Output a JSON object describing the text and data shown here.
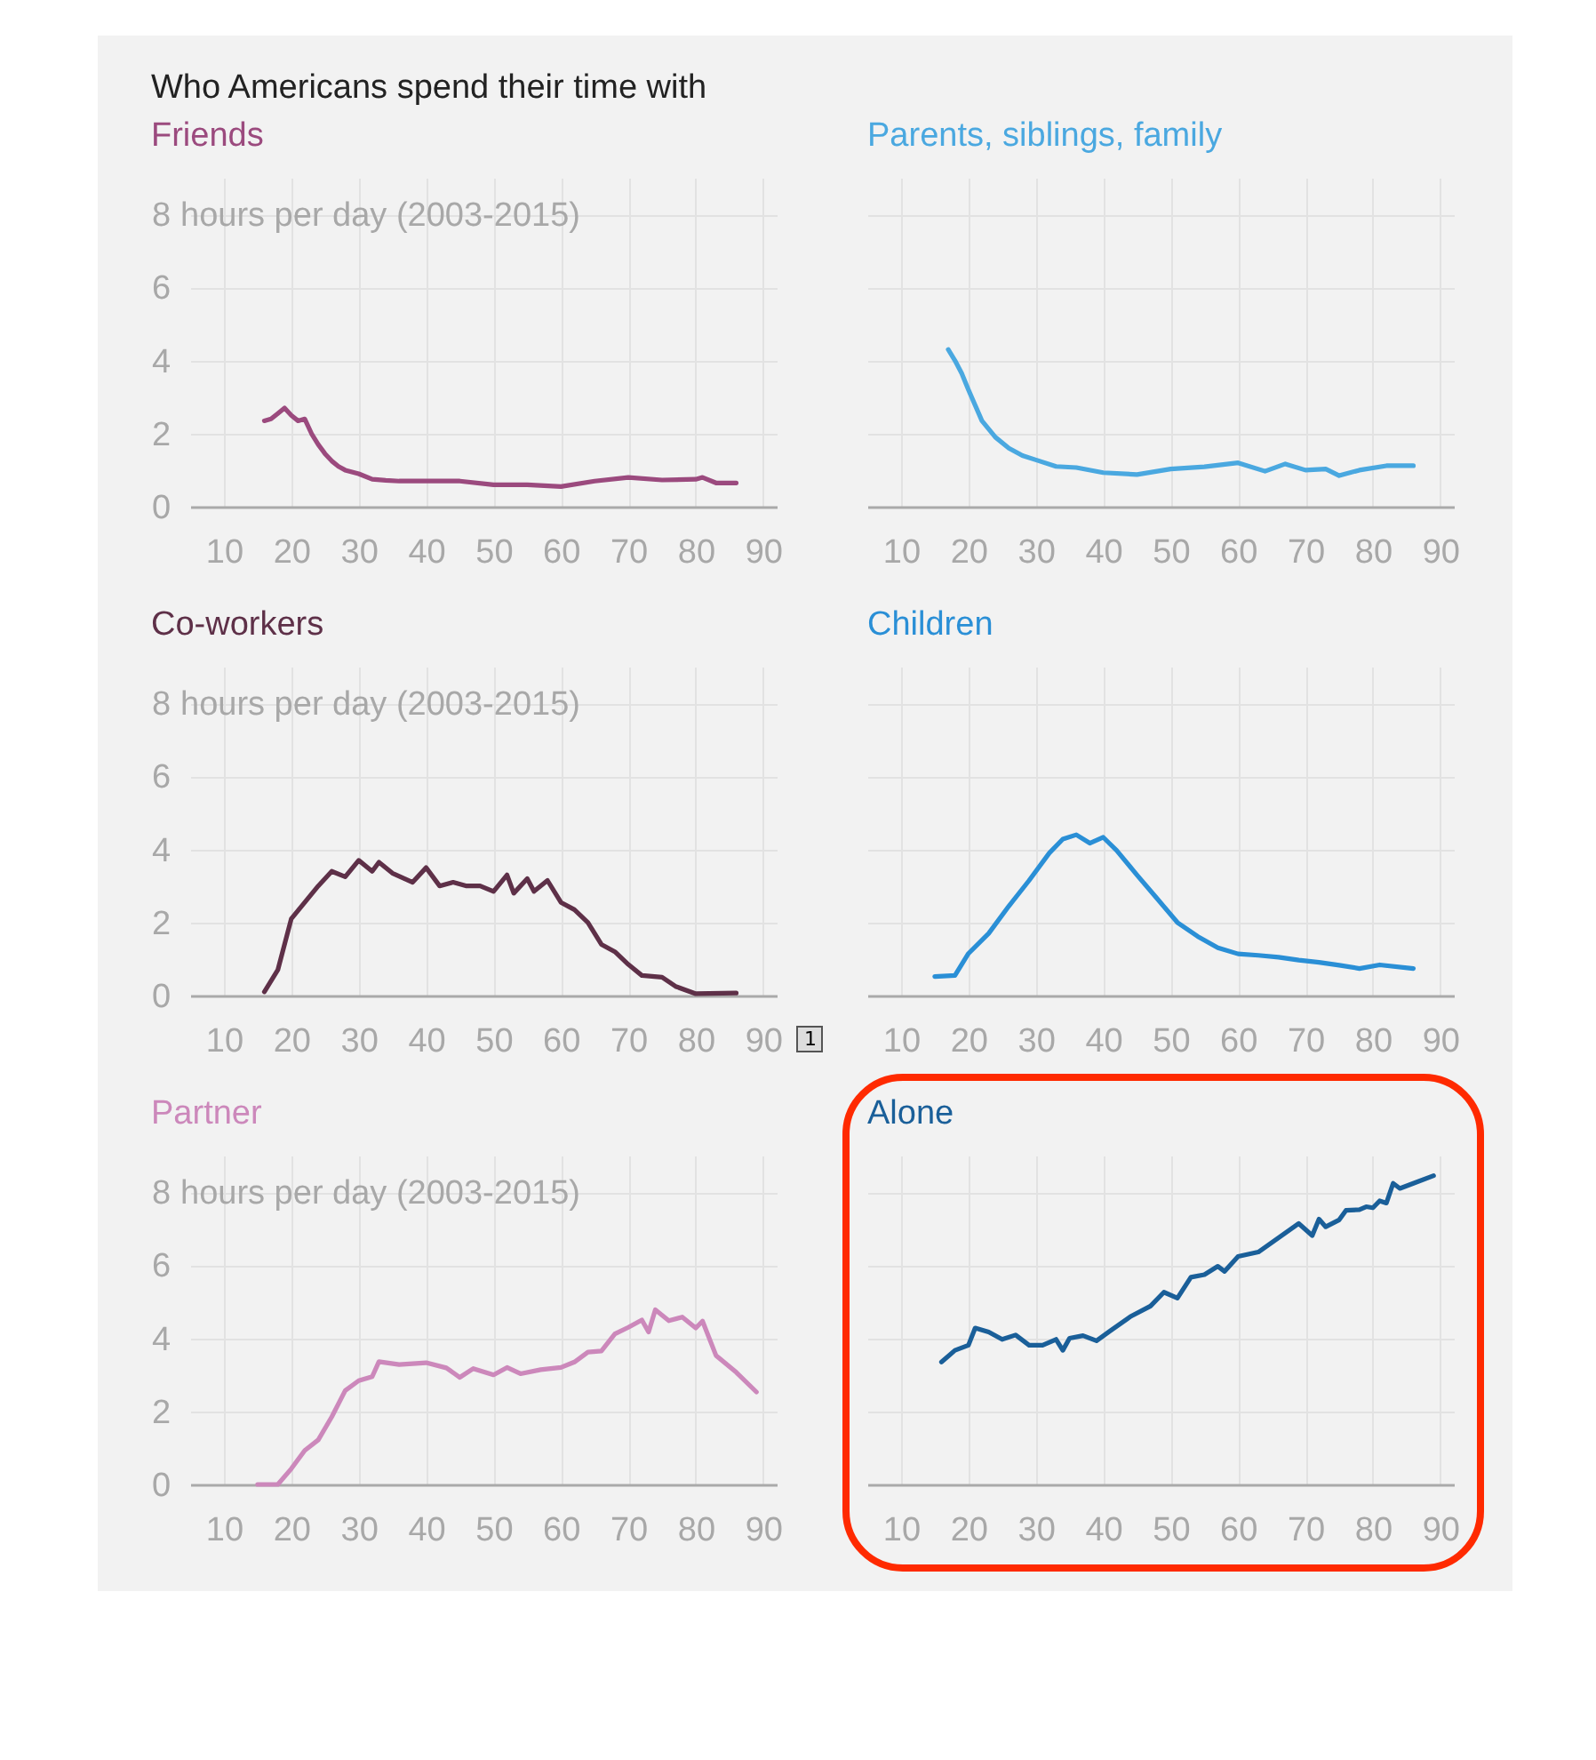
{
  "chart_data": [
    {
      "type": "line",
      "title": "Who Americans spend their time with",
      "subtitle": "Friends",
      "xlim": [
        5,
        92
      ],
      "xticks": [
        10,
        20,
        30,
        40,
        50,
        60,
        70,
        80,
        90
      ],
      "ylim": [
        0,
        9
      ],
      "yticks": [
        0,
        2,
        4,
        6,
        8
      ],
      "ylabel": "hours per day (2003-2015)",
      "grid": true,
      "series": [
        {
          "color": "#9b4a7e",
          "x": [
            16,
            17,
            18,
            19,
            20,
            21,
            22,
            23,
            24,
            25,
            26,
            27,
            28,
            30,
            32,
            34,
            36,
            38,
            40,
            45,
            50,
            55,
            60,
            65,
            70,
            75,
            80,
            81,
            83,
            86
          ],
          "values": [
            2.35,
            2.4,
            2.55,
            2.7,
            2.5,
            2.35,
            2.4,
            2.0,
            1.7,
            1.45,
            1.25,
            1.1,
            1.0,
            0.9,
            0.75,
            0.72,
            0.7,
            0.7,
            0.7,
            0.7,
            0.6,
            0.6,
            0.55,
            0.7,
            0.8,
            0.73,
            0.75,
            0.8,
            0.65,
            0.65
          ]
        }
      ]
    },
    {
      "type": "line",
      "title": "Parents, siblings, family",
      "xlim": [
        5,
        92
      ],
      "xticks": [
        10,
        20,
        30,
        40,
        50,
        60,
        70,
        80,
        90
      ],
      "ylim": [
        0,
        9
      ],
      "yticks": [
        0,
        2,
        4,
        6,
        8
      ],
      "grid": true,
      "tick_labels": "x",
      "series": [
        {
          "color": "#4aa8e0",
          "x": [
            17,
            18,
            19,
            20,
            22,
            24,
            26,
            28,
            30,
            33,
            36,
            40,
            45,
            50,
            55,
            60,
            64,
            67,
            70,
            73,
            75,
            78,
            82,
            86
          ],
          "values": [
            4.3,
            4.0,
            3.65,
            3.2,
            2.35,
            1.9,
            1.6,
            1.4,
            1.28,
            1.1,
            1.07,
            0.93,
            0.88,
            1.03,
            1.09,
            1.2,
            0.97,
            1.17,
            1.0,
            1.03,
            0.85,
            1.0,
            1.12,
            1.12
          ]
        }
      ]
    },
    {
      "type": "line",
      "title": "Co-workers",
      "xlim": [
        5,
        92
      ],
      "xticks": [
        10,
        20,
        30,
        40,
        50,
        60,
        70,
        80,
        90
      ],
      "ylim": [
        0,
        9
      ],
      "yticks": [
        0,
        2,
        4,
        6,
        8
      ],
      "ylabel": "hours per day (2003-2015)",
      "grid": true,
      "annotations": [
        "1"
      ],
      "series": [
        {
          "color": "#5e3048",
          "x": [
            16,
            18,
            20,
            22,
            24,
            26,
            28,
            30,
            32,
            33,
            35,
            38,
            40,
            42,
            44,
            46,
            48,
            50,
            52,
            53,
            55,
            56,
            58,
            60,
            62,
            64,
            66,
            68,
            70,
            72,
            75,
            77,
            80,
            86
          ],
          "values": [
            0.1,
            0.7,
            2.1,
            2.55,
            3.0,
            3.4,
            3.25,
            3.7,
            3.4,
            3.65,
            3.35,
            3.1,
            3.5,
            3.0,
            3.1,
            3.0,
            3.0,
            2.85,
            3.3,
            2.8,
            3.2,
            2.85,
            3.15,
            2.55,
            2.35,
            2.0,
            1.4,
            1.2,
            0.85,
            0.55,
            0.5,
            0.25,
            0.05,
            0.07
          ]
        }
      ]
    },
    {
      "type": "line",
      "title": "Children",
      "xlim": [
        5,
        92
      ],
      "xticks": [
        10,
        20,
        30,
        40,
        50,
        60,
        70,
        80,
        90
      ],
      "ylim": [
        0,
        9
      ],
      "yticks": [
        0,
        2,
        4,
        6,
        8
      ],
      "grid": true,
      "tick_labels": "x",
      "series": [
        {
          "color": "#2a8fd6",
          "x": [
            15,
            18,
            20,
            23,
            26,
            29,
            32,
            34,
            36,
            38,
            40,
            42,
            45,
            48,
            51,
            54,
            57,
            60,
            63,
            66,
            69,
            72,
            75,
            78,
            81,
            86
          ],
          "values": [
            0.52,
            0.55,
            1.15,
            1.7,
            2.45,
            3.15,
            3.9,
            4.28,
            4.4,
            4.17,
            4.33,
            3.97,
            3.3,
            2.65,
            2.0,
            1.62,
            1.31,
            1.14,
            1.1,
            1.05,
            0.97,
            0.91,
            0.83,
            0.74,
            0.84,
            0.74
          ]
        }
      ]
    },
    {
      "type": "line",
      "title": "Partner",
      "xlim": [
        5,
        92
      ],
      "xticks": [
        10,
        20,
        30,
        40,
        50,
        60,
        70,
        80,
        90
      ],
      "ylim": [
        0,
        9
      ],
      "yticks": [
        0,
        2,
        4,
        6,
        8
      ],
      "ylabel": "hours per day (2003-2015)",
      "grid": true,
      "series": [
        {
          "color": "#cc88bb",
          "x": [
            15,
            18,
            20,
            22,
            24,
            26,
            28,
            30,
            32,
            33,
            36,
            40,
            43,
            45,
            47,
            50,
            52,
            54,
            57,
            60,
            62,
            64,
            66,
            68,
            70,
            72,
            73,
            74,
            76,
            78,
            80,
            81,
            83,
            86,
            89
          ],
          "values": [
            0,
            0,
            0.43,
            0.93,
            1.22,
            1.85,
            2.57,
            2.84,
            2.95,
            3.36,
            3.28,
            3.33,
            3.19,
            2.93,
            3.17,
            3.0,
            3.2,
            3.03,
            3.14,
            3.2,
            3.35,
            3.62,
            3.65,
            4.12,
            4.3,
            4.5,
            4.17,
            4.78,
            4.48,
            4.58,
            4.28,
            4.47,
            3.53,
            3.07,
            2.53
          ]
        }
      ]
    },
    {
      "type": "line",
      "title": "Alone",
      "xlim": [
        5,
        92
      ],
      "xticks": [
        10,
        20,
        30,
        40,
        50,
        60,
        70,
        80,
        90
      ],
      "ylim": [
        0,
        9
      ],
      "yticks": [
        0,
        2,
        4,
        6,
        8
      ],
      "grid": true,
      "tick_labels": "x",
      "series": [
        {
          "color": "#1a5f99",
          "x": [
            16,
            18,
            20,
            21,
            23,
            25,
            27,
            29,
            31,
            33,
            34,
            35,
            37,
            39,
            41,
            44,
            47,
            49,
            51,
            53,
            55,
            57,
            58,
            60,
            63,
            65,
            67,
            69,
            71,
            72,
            73,
            75,
            76,
            78,
            79,
            80,
            81,
            82,
            83,
            84,
            86,
            89
          ],
          "values": [
            3.35,
            3.67,
            3.81,
            4.28,
            4.17,
            3.97,
            4.09,
            3.81,
            3.81,
            3.97,
            3.67,
            4.0,
            4.07,
            3.93,
            4.2,
            4.59,
            4.88,
            5.26,
            5.1,
            5.67,
            5.74,
            5.97,
            5.83,
            6.24,
            6.36,
            6.62,
            6.88,
            7.14,
            6.81,
            7.26,
            7.05,
            7.24,
            7.5,
            7.52,
            7.6,
            7.57,
            7.76,
            7.7,
            8.24,
            8.1,
            8.24,
            8.45
          ]
        }
      ]
    }
  ]
}
